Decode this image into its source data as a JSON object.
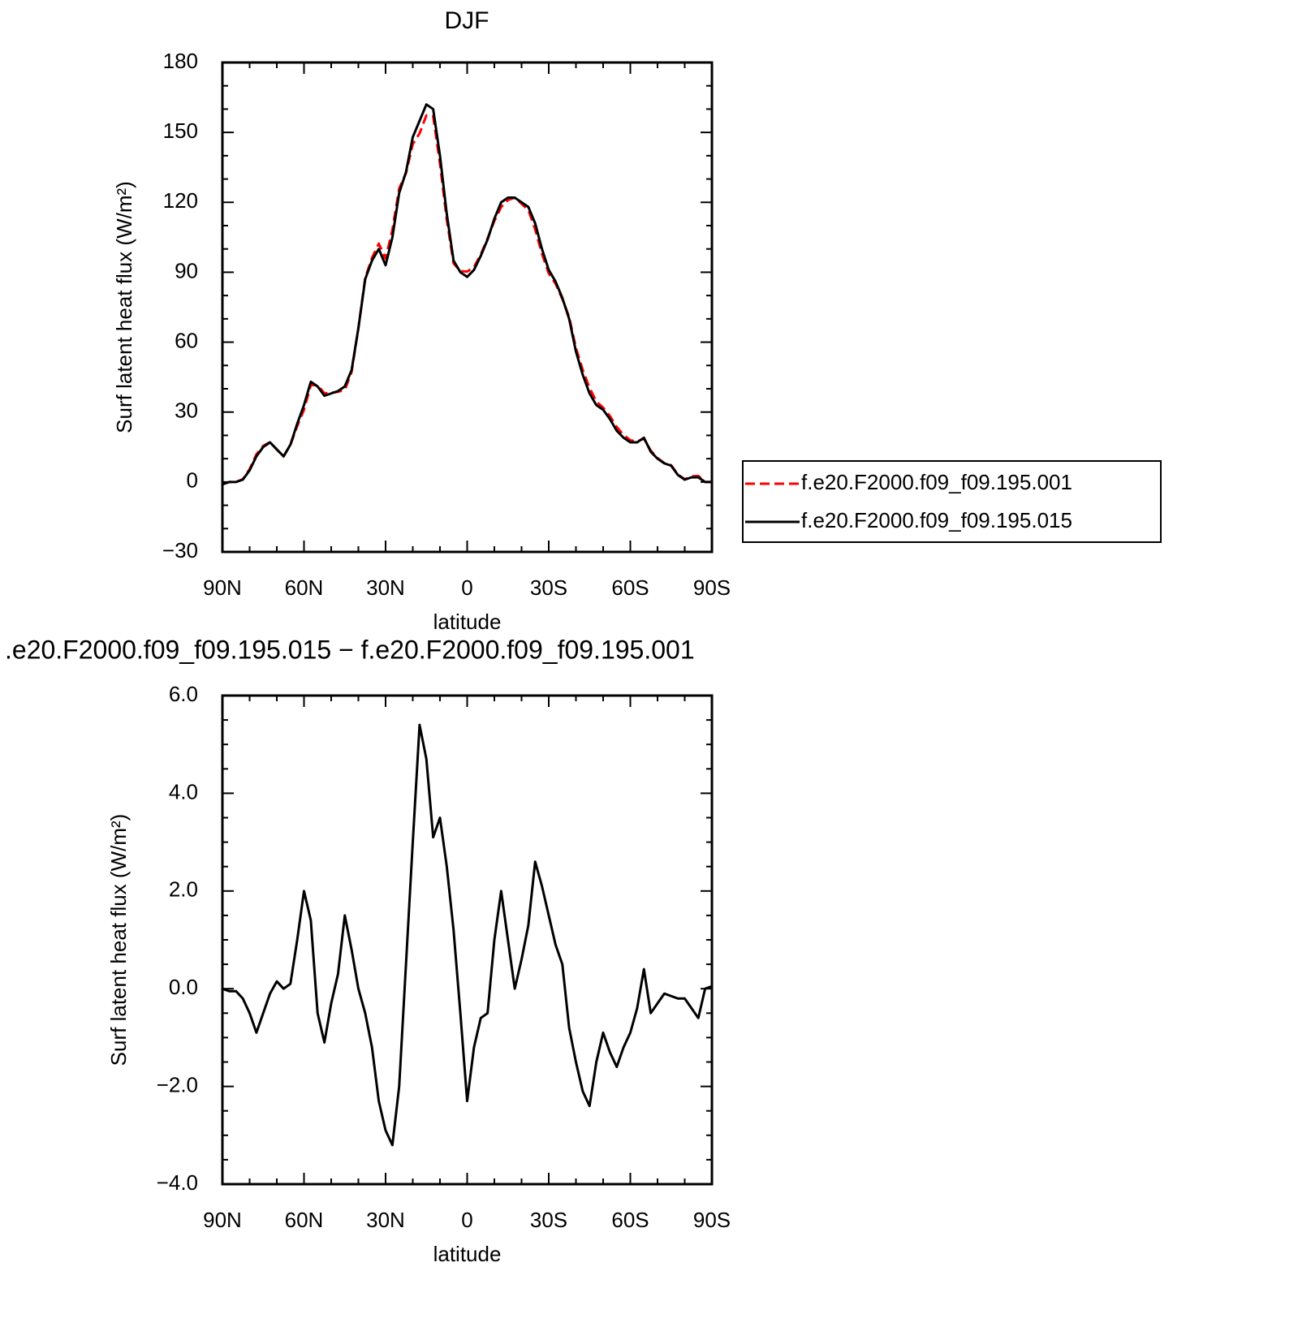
{
  "chart_data": [
    {
      "type": "line",
      "title": "DJF",
      "x_label": "latitude",
      "y_label": "Surf latent heat flux (W/m²)",
      "x": [
        90,
        87.5,
        85,
        82.5,
        80,
        77.5,
        75,
        72.5,
        70,
        67.5,
        65,
        62.5,
        60,
        57.5,
        55,
        52.5,
        50,
        47.5,
        45,
        42.5,
        40,
        37.5,
        35,
        32.5,
        30,
        27.5,
        25,
        22.5,
        20,
        17.5,
        15,
        12.5,
        10,
        7.5,
        5,
        2.5,
        0,
        -2.5,
        -5,
        -7.5,
        -10,
        -12.5,
        -15,
        -17.5,
        -20,
        -22.5,
        -25,
        -27.5,
        -30,
        -32.5,
        -35,
        -37.5,
        -40,
        -42.5,
        -45,
        -47.5,
        -50,
        -52.5,
        -55,
        -57.5,
        -60,
        -62.5,
        -65,
        -67.5,
        -70,
        -72.5,
        -75,
        -77.5,
        -80,
        -82.5,
        -85,
        -87.5,
        -90
      ],
      "series": [
        {
          "name": "f.e20.F2000.f09_f09.195.001",
          "color": "#ff0000",
          "dash": true,
          "values": [
            -1,
            0,
            0,
            1.2,
            5.5,
            11.9,
            15.5,
            17.1,
            13.9,
            11,
            15.9,
            24,
            31,
            41.6,
            41.5,
            38.1,
            38.3,
            38.7,
            39.5,
            47.2,
            66,
            87.5,
            96.2,
            102.3,
            95.9,
            108.2,
            126,
            132.5,
            145,
            149.6,
            157.3,
            156.9,
            136.5,
            112.5,
            93.8,
            90.5,
            90.3,
            92.2,
            97.6,
            104.5,
            112,
            118,
            121,
            122,
            119.4,
            116.7,
            108.4,
            97.9,
            89.5,
            85.1,
            78.5,
            70.8,
            57.5,
            48.1,
            40.4,
            34.5,
            31.9,
            28.3,
            23.6,
            20.2,
            17.9,
            17.4,
            18.6,
            13.5,
            10.3,
            8.1,
            7.2,
            3.2,
            1.2,
            2.4,
            2.6,
            0,
            0
          ]
        },
        {
          "name": "f.e20.F2000.f09_f09.195.015",
          "color": "#000000",
          "dash": false,
          "values": [
            -1,
            0,
            0,
            1,
            5,
            11,
            15,
            17,
            14,
            11,
            16,
            25,
            33,
            43,
            41,
            37,
            38,
            39,
            41,
            48,
            66,
            87,
            95,
            100,
            93,
            105,
            124,
            133,
            148,
            155,
            162,
            160,
            140,
            115,
            95,
            90,
            88,
            91,
            97,
            104,
            113,
            120,
            122,
            122,
            120,
            118,
            111,
            100,
            91,
            86,
            79,
            70,
            56,
            46,
            38,
            33,
            31,
            27,
            22,
            19,
            17,
            17,
            19,
            13,
            10,
            8,
            7,
            3,
            1,
            2,
            2,
            0,
            0
          ]
        }
      ],
      "xlim": [
        90,
        -90
      ],
      "xticks": [
        {
          "value": 90,
          "label": "90N"
        },
        {
          "value": 60,
          "label": "60N"
        },
        {
          "value": 30,
          "label": "30N"
        },
        0,
        {
          "value": -30,
          "label": "30S"
        },
        {
          "value": -60,
          "label": "60S"
        },
        {
          "value": -90,
          "label": "90S"
        }
      ],
      "xminor_ticks": [
        80,
        70,
        50,
        40,
        20,
        10,
        -10,
        -20,
        -40,
        -50,
        -70,
        -80
      ],
      "ylim": [
        -30,
        180
      ],
      "yticks": [
        {
          "value": -30,
          "label": "−30"
        },
        0,
        30,
        60,
        90,
        120,
        150,
        180
      ],
      "yminor_ticks": [
        -20,
        -10,
        10,
        20,
        40,
        50,
        70,
        80,
        100,
        110,
        130,
        140,
        160,
        170
      ],
      "legend": "right"
    },
    {
      "type": "line",
      "title": ".e20.F2000.f09_f09.195.015 − f.e20.F2000.f09_f09.195.001",
      "x_label": "latitude",
      "y_label": "Surf latent heat flux (W/m²)",
      "x": [
        90,
        87.5,
        85,
        82.5,
        80,
        77.5,
        75,
        72.5,
        70,
        67.5,
        65,
        62.5,
        60,
        57.5,
        55,
        52.5,
        50,
        47.5,
        45,
        42.5,
        40,
        37.5,
        35,
        32.5,
        30,
        27.5,
        25,
        22.5,
        20,
        17.5,
        15,
        12.5,
        10,
        7.5,
        5,
        2.5,
        0,
        -2.5,
        -5,
        -7.5,
        -10,
        -12.5,
        -15,
        -17.5,
        -20,
        -22.5,
        -25,
        -27.5,
        -30,
        -32.5,
        -35,
        -37.5,
        -40,
        -42.5,
        -45,
        -47.5,
        -50,
        -52.5,
        -55,
        -57.5,
        -60,
        -62.5,
        -65,
        -67.5,
        -70,
        -72.5,
        -75,
        -77.5,
        -80,
        -82.5,
        -85,
        -87.5,
        -90
      ],
      "color": "#000000",
      "values": [
        0,
        -0.05,
        -0.05,
        -0.2,
        -0.5,
        -0.9,
        -0.5,
        -0.1,
        0.15,
        0,
        0.1,
        1.0,
        2.0,
        1.4,
        -0.5,
        -1.1,
        -0.3,
        0.3,
        1.5,
        0.8,
        0,
        -0.5,
        -1.2,
        -2.3,
        -2.9,
        -3.2,
        -2.0,
        0.5,
        3.0,
        5.4,
        4.7,
        3.1,
        3.5,
        2.5,
        1.2,
        -0.5,
        -2.3,
        -1.2,
        -0.6,
        -0.5,
        1.0,
        2.0,
        1.0,
        0,
        0.6,
        1.3,
        2.6,
        2.1,
        1.5,
        0.9,
        0.5,
        -0.8,
        -1.5,
        -2.1,
        -2.4,
        -1.5,
        -0.9,
        -1.3,
        -1.6,
        -1.2,
        -0.9,
        -0.4,
        0.4,
        -0.5,
        -0.3,
        -0.1,
        -0.15,
        -0.2,
        -0.2,
        -0.4,
        -0.6,
        0,
        0.05
      ],
      "xlim": [
        90,
        -90
      ],
      "xticks": [
        {
          "value": 90,
          "label": "90N"
        },
        {
          "value": 60,
          "label": "60N"
        },
        {
          "value": 30,
          "label": "30N"
        },
        0,
        {
          "value": -30,
          "label": "30S"
        },
        {
          "value": -60,
          "label": "60S"
        },
        {
          "value": -90,
          "label": "90S"
        }
      ],
      "xminor_ticks": [
        80,
        70,
        50,
        40,
        20,
        10,
        -10,
        -20,
        -40,
        -50,
        -70,
        -80
      ],
      "ylim": [
        -4,
        6
      ],
      "yticks": [
        {
          "value": -4,
          "label": "−4.0"
        },
        {
          "value": -2,
          "label": "−2.0"
        },
        {
          "value": 0,
          "label": "0.0"
        },
        {
          "value": 2,
          "label": "2.0"
        },
        {
          "value": 4,
          "label": "4.0"
        },
        {
          "value": 6,
          "label": "6.0"
        }
      ],
      "yminor_ticks": [
        -3.5,
        -3,
        -2.5,
        -1.5,
        -1,
        -0.5,
        0.5,
        1,
        1.5,
        2.5,
        3,
        3.5,
        4.5,
        5,
        5.5
      ]
    }
  ]
}
